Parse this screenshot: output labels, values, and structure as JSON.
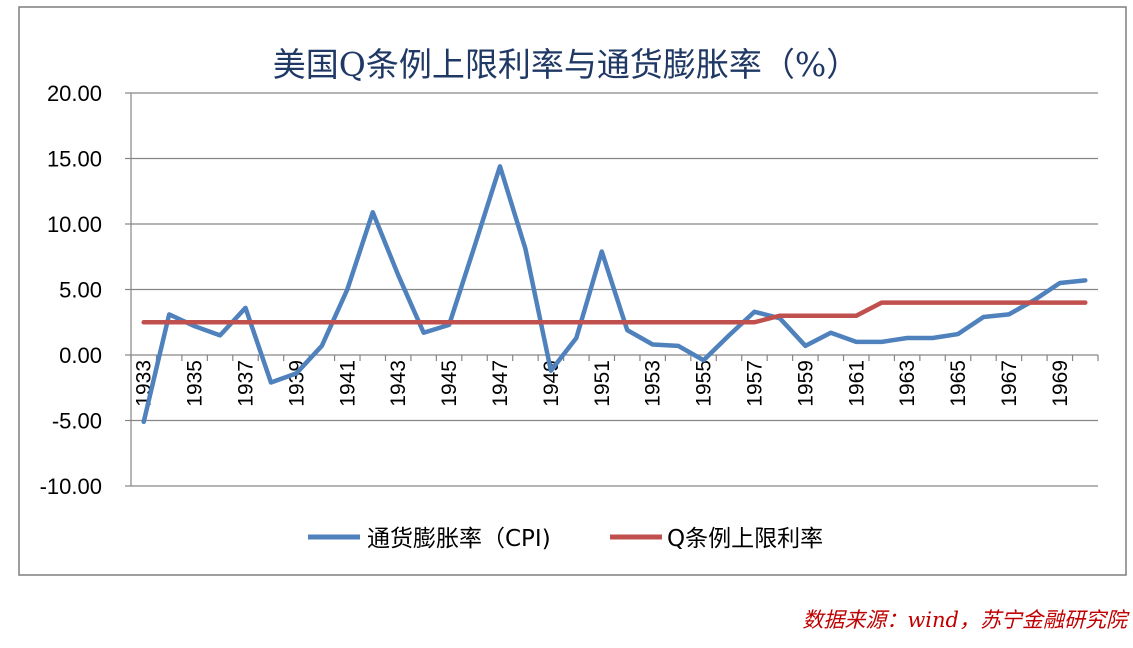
{
  "chart_data": {
    "type": "line",
    "title": "美国Q条例上限利率与通货膨胀率（%）",
    "xlabel": "",
    "ylabel": "",
    "ylim": [
      -10,
      20
    ],
    "yticks": [
      "20.00",
      "15.00",
      "10.00",
      "5.00",
      "0.00",
      "-5.00",
      "-10.00"
    ],
    "grid": true,
    "legend_position": "bottom",
    "x": [
      1933,
      1934,
      1935,
      1936,
      1937,
      1938,
      1939,
      1940,
      1941,
      1942,
      1943,
      1944,
      1945,
      1946,
      1947,
      1948,
      1949,
      1950,
      1951,
      1952,
      1953,
      1954,
      1955,
      1956,
      1957,
      1958,
      1959,
      1960,
      1961,
      1962,
      1963,
      1964,
      1965,
      1966,
      1967,
      1968,
      1969,
      1970
    ],
    "xtick_labels": [
      "1933",
      "1935",
      "1937",
      "1939",
      "1941",
      "1943",
      "1945",
      "1947",
      "1949",
      "1951",
      "1953",
      "1955",
      "1957",
      "1959",
      "1961",
      "1963",
      "1965",
      "1967",
      "1969"
    ],
    "series": [
      {
        "name": "通货膨胀率（CPI)",
        "color": "#4f81bd",
        "values": [
          -5.1,
          3.1,
          2.2,
          1.5,
          3.6,
          -2.1,
          -1.4,
          0.7,
          5.0,
          10.9,
          6.1,
          1.7,
          2.3,
          8.3,
          14.4,
          8.1,
          -1.2,
          1.3,
          7.9,
          1.9,
          0.8,
          0.7,
          -0.4,
          1.5,
          3.3,
          2.8,
          0.7,
          1.7,
          1.0,
          1.0,
          1.3,
          1.3,
          1.6,
          2.9,
          3.1,
          4.2,
          5.5,
          5.7
        ]
      },
      {
        "name": "Q条例上限利率",
        "color": "#c0504d",
        "values": [
          2.5,
          2.5,
          2.5,
          2.5,
          2.5,
          2.5,
          2.5,
          2.5,
          2.5,
          2.5,
          2.5,
          2.5,
          2.5,
          2.5,
          2.5,
          2.5,
          2.5,
          2.5,
          2.5,
          2.5,
          2.5,
          2.5,
          2.5,
          2.5,
          2.5,
          3.0,
          3.0,
          3.0,
          3.0,
          4.0,
          4.0,
          4.0,
          4.0,
          4.0,
          4.0,
          4.0,
          4.0,
          4.0
        ]
      }
    ]
  },
  "source_note": "数据来源：wind，苏宁金融研究院"
}
